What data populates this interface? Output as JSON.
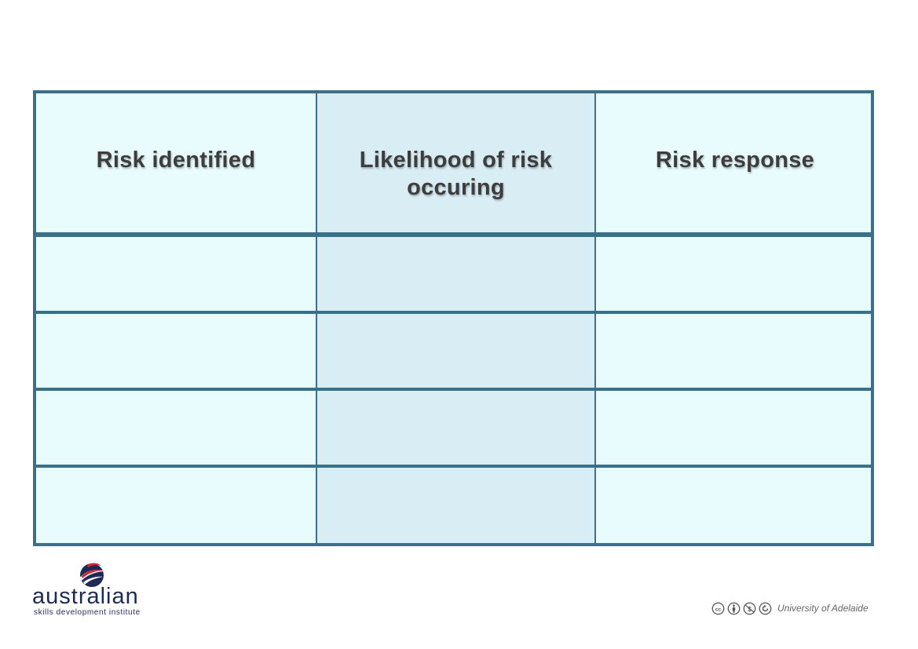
{
  "table": {
    "headers": [
      "Risk identified",
      "Likelihood of risk occuring",
      "Risk response"
    ],
    "rows": [
      [
        "",
        "",
        ""
      ],
      [
        "",
        "",
        ""
      ],
      [
        "",
        "",
        ""
      ],
      [
        "",
        "",
        ""
      ]
    ],
    "colors": {
      "border": "#3a7088",
      "cell_light": "#e8fbfd",
      "cell_middle": "#d9edf4",
      "header_text": "#3d3d3d"
    }
  },
  "logo": {
    "wordmark": "australian",
    "tagline": "skills development institute",
    "colors": {
      "navy": "#1d2a56",
      "red": "#d6262f"
    }
  },
  "license": {
    "icons": [
      "cc-icon",
      "attribution-icon",
      "noncommercial-icon",
      "share-alike-icon"
    ],
    "attribution": "University of Adelaide"
  }
}
